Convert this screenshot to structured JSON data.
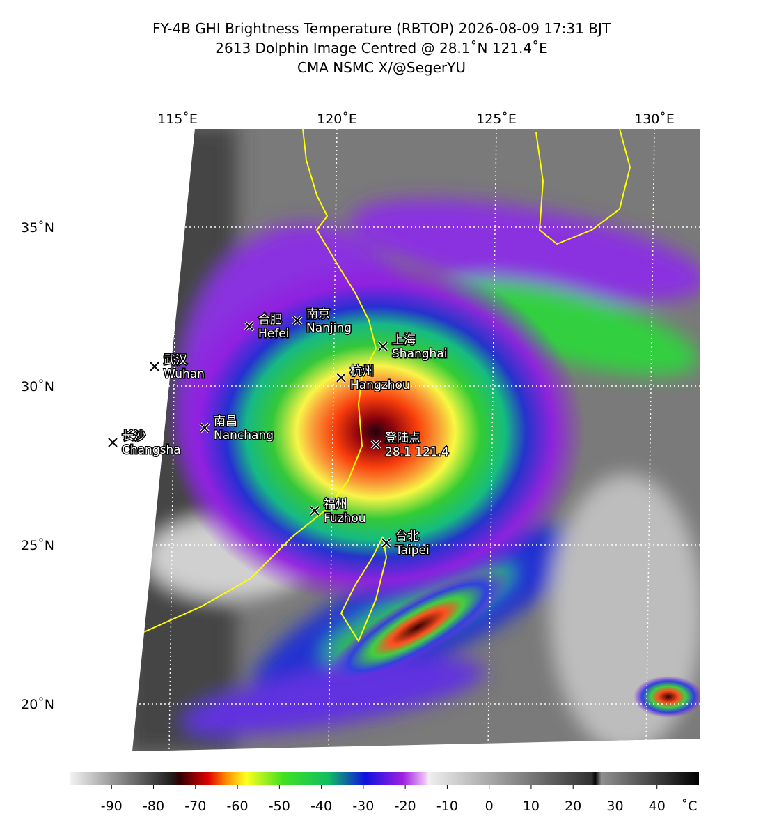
{
  "header": {
    "lines": [
      "FY-4B GHI Brightness Temperature (RBTOP) 2026-08-09 17:31 BJT",
      "2613 Dolphin  Image Centred @ 28.1˚N 121.4˚E",
      "CMA NSMC  X/@SegerYU"
    ]
  },
  "map": {
    "lon_labels": [
      "115˚E",
      "120˚E",
      "125˚E",
      "130˚E"
    ],
    "lat_labels": [
      "35˚N",
      "30˚N",
      "25˚N",
      "20˚N"
    ],
    "places": [
      {
        "zh": "合肥",
        "en": "Hefei"
      },
      {
        "zh": "南京",
        "en": "Nanjing"
      },
      {
        "zh": "上海",
        "en": "Shanghai"
      },
      {
        "zh": "武汉",
        "en": "Wuhan"
      },
      {
        "zh": "杭州",
        "en": "Hangzhou"
      },
      {
        "zh": "南昌",
        "en": "Nanchang"
      },
      {
        "zh": "长沙",
        "en": "Changsha"
      },
      {
        "zh": "登陆点",
        "en": "28.1 121.4"
      },
      {
        "zh": "福州",
        "en": "Fuzhou"
      },
      {
        "zh": "台北",
        "en": "Taipei"
      }
    ]
  },
  "colorbar": {
    "range": [
      -100,
      50
    ],
    "ticks": [
      -90,
      -80,
      -70,
      -60,
      -50,
      -40,
      -30,
      -20,
      -10,
      0,
      10,
      20,
      30,
      40
    ],
    "unit": "˚C"
  }
}
